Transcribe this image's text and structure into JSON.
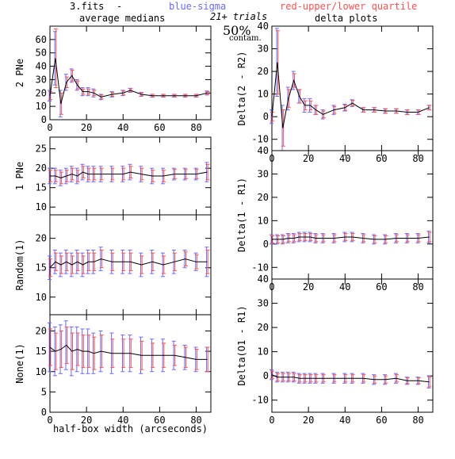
{
  "header": {
    "file": "3.fits",
    "dash": "-",
    "blue_key": "blue-sigma",
    "red_key": "red-upper/lower quartile",
    "trials": "21+ trials",
    "contam_pct": "50%",
    "contam_label": "contam.",
    "left_title": "average medians",
    "right_title": "delta plots"
  },
  "colors": {
    "line": "#000000",
    "sigma": "#6a6aff",
    "quartile": "#ff5050",
    "frame": "#000000"
  },
  "chart_data": [
    {
      "id": "left-0",
      "type": "line",
      "ylabel": "2 PNe",
      "xlabel": "",
      "xlim": [
        0,
        88
      ],
      "ylim": [
        0,
        70
      ],
      "xticks": [
        0,
        20,
        40,
        60,
        80
      ],
      "yticks": [
        0,
        10,
        20,
        30,
        40,
        50,
        60
      ],
      "series": [
        {
          "x": [
            0,
            3,
            6,
            9,
            12,
            15,
            18,
            21,
            24,
            28,
            34,
            40,
            44,
            50,
            56,
            62,
            68,
            74,
            80,
            86
          ],
          "y": [
            18,
            46,
            12,
            28,
            33,
            26,
            21,
            21,
            20,
            17,
            19,
            20,
            22,
            19,
            18,
            18,
            18,
            18,
            18,
            20
          ],
          "sigma": [
            4,
            20,
            10,
            6,
            5,
            4,
            3,
            3,
            3,
            2,
            2,
            2,
            1.5,
            1.5,
            1,
            1,
            1,
            1,
            1,
            1.5
          ],
          "q": [
            3,
            22,
            8,
            4,
            4,
            3,
            2,
            2,
            2,
            1.5,
            1.5,
            1.5,
            1.2,
            1.2,
            1,
            1,
            1,
            1,
            1,
            1
          ]
        }
      ]
    },
    {
      "id": "right-0",
      "type": "line",
      "ylabel": "Delta(2 - R2)",
      "xlabel": "",
      "xlim": [
        0,
        88
      ],
      "ylim": [
        -15,
        40
      ],
      "xticks": [
        0,
        20,
        40,
        60,
        80
      ],
      "yticks": [
        -10,
        0,
        10,
        20,
        30,
        40
      ],
      "series": [
        {
          "x": [
            0,
            3,
            6,
            9,
            12,
            15,
            18,
            21,
            24,
            28,
            34,
            40,
            44,
            50,
            56,
            62,
            68,
            74,
            80,
            86
          ],
          "y": [
            0,
            24,
            -5,
            8,
            16,
            9,
            5,
            5,
            3,
            1,
            3,
            4,
            6,
            3,
            3,
            2.5,
            2.5,
            2,
            2,
            4
          ],
          "sigma": [
            3,
            15,
            10,
            5,
            4,
            3,
            3,
            3,
            2,
            2,
            2,
            1.5,
            1.5,
            1,
            1,
            1,
            1,
            1,
            1,
            1
          ],
          "q": [
            2,
            14,
            8,
            4,
            3,
            3,
            2,
            2,
            2,
            1.5,
            1.5,
            1.2,
            1.2,
            1,
            1,
            1,
            1,
            1,
            1,
            1
          ]
        }
      ]
    },
    {
      "id": "left-1",
      "type": "line",
      "ylabel": "1 PNe",
      "xlabel": "",
      "xlim": [
        0,
        88
      ],
      "ylim": [
        8,
        28
      ],
      "xticks": [
        0,
        20,
        40,
        60,
        80
      ],
      "yticks": [
        10,
        15,
        20,
        25
      ],
      "series": [
        {
          "x": [
            0,
            3,
            6,
            9,
            12,
            15,
            18,
            21,
            24,
            28,
            34,
            40,
            44,
            50,
            56,
            62,
            68,
            74,
            80,
            86
          ],
          "y": [
            18,
            18,
            17.5,
            18,
            18.5,
            18,
            19,
            18.5,
            18.5,
            18.5,
            18.5,
            18.5,
            19,
            18.5,
            18,
            18,
            18.5,
            18.5,
            18.5,
            19
          ],
          "sigma": [
            2,
            2,
            2,
            2,
            2,
            2,
            2,
            2,
            2,
            2,
            2,
            2,
            2,
            2,
            2,
            2,
            1.5,
            1.5,
            1.5,
            2.5
          ],
          "q": [
            1.5,
            1.5,
            1.5,
            1.5,
            1.5,
            1.5,
            1.5,
            1.5,
            1.5,
            1.5,
            1.5,
            1.5,
            1.5,
            1.5,
            1.5,
            1.5,
            1.2,
            1.2,
            1.2,
            2
          ]
        }
      ]
    },
    {
      "id": "right-1",
      "type": "line",
      "ylabel": "Delta(1 - R1)",
      "xlabel": "",
      "xlim": [
        0,
        88
      ],
      "ylim": [
        -15,
        40
      ],
      "xticks": [
        0,
        20,
        40,
        60,
        80
      ],
      "yticks": [
        -10,
        0,
        10,
        20,
        30,
        40
      ],
      "series": [
        {
          "x": [
            0,
            3,
            6,
            9,
            12,
            15,
            18,
            21,
            24,
            28,
            34,
            40,
            44,
            50,
            56,
            62,
            68,
            74,
            80,
            86
          ],
          "y": [
            2,
            2,
            2,
            2.5,
            2.5,
            3,
            3,
            3,
            2.5,
            2.5,
            2.5,
            3,
            3,
            2.5,
            2,
            2,
            2.5,
            2.5,
            2.5,
            3
          ],
          "sigma": [
            2,
            2,
            2,
            2,
            2,
            2,
            2,
            2,
            2,
            2,
            2,
            2,
            2,
            2,
            2,
            2,
            2,
            2,
            2,
            2.5
          ],
          "q": [
            1.5,
            1.5,
            1.5,
            1.5,
            1.5,
            1.5,
            1.5,
            1.5,
            1.5,
            1.5,
            1.5,
            1.5,
            1.5,
            1.5,
            1.5,
            1.5,
            1.5,
            1.5,
            1.5,
            2
          ]
        }
      ]
    },
    {
      "id": "left-2",
      "type": "line",
      "ylabel": "Random(1)",
      "xlabel": "",
      "xlim": [
        0,
        88
      ],
      "ylim": [
        7,
        24
      ],
      "xticks": [
        0,
        20,
        40,
        60,
        80
      ],
      "yticks": [
        10,
        15,
        20
      ],
      "series": [
        {
          "x": [
            0,
            3,
            6,
            9,
            12,
            15,
            18,
            21,
            24,
            28,
            34,
            40,
            44,
            50,
            56,
            62,
            68,
            74,
            80,
            86
          ],
          "y": [
            15,
            16,
            15.5,
            16,
            15.5,
            16,
            15.5,
            16,
            16,
            16.5,
            16,
            16,
            16,
            15.5,
            16,
            15.5,
            16,
            16.5,
            16,
            16
          ],
          "sigma": [
            2,
            2,
            2,
            2,
            2,
            2,
            2,
            2,
            2,
            2,
            2,
            2,
            2,
            2,
            2,
            2,
            2,
            1.5,
            1.5,
            2.5
          ],
          "q": [
            1.5,
            1.5,
            1.5,
            1.5,
            1.5,
            1.5,
            1.5,
            1.5,
            1.5,
            1.5,
            1.5,
            1.5,
            1.5,
            1.5,
            1.5,
            1.5,
            1.5,
            1.2,
            1.2,
            2
          ]
        }
      ]
    },
    {
      "id": "right-2",
      "type": "line",
      "ylabel": "Delta(O1 - R1)",
      "xlabel": "",
      "xlim": [
        0,
        88
      ],
      "ylim": [
        -15,
        40
      ],
      "xticks": [
        0,
        20,
        40,
        60,
        80
      ],
      "yticks": [
        -10,
        0,
        10,
        20,
        30,
        40
      ],
      "series": [
        {
          "x": [
            0,
            3,
            6,
            9,
            12,
            15,
            18,
            21,
            24,
            28,
            34,
            40,
            44,
            50,
            56,
            62,
            68,
            74,
            80,
            86
          ],
          "y": [
            0.5,
            -0.5,
            -0.5,
            -0.5,
            -0.5,
            -1,
            -1,
            -1,
            -1,
            -1,
            -1,
            -1,
            -1,
            -1,
            -1.5,
            -1.5,
            -1,
            -2,
            -2,
            -2.5
          ],
          "sigma": [
            2,
            2,
            2,
            2,
            2,
            2,
            2,
            2,
            2,
            2,
            2,
            2,
            2,
            2,
            2,
            2,
            2,
            1.5,
            1.5,
            2.5
          ],
          "q": [
            1.5,
            1.5,
            1.5,
            1.5,
            1.5,
            1.5,
            1.5,
            1.5,
            1.5,
            1.5,
            1.5,
            1.5,
            1.5,
            1.5,
            1.5,
            1.5,
            1.5,
            1.2,
            1.2,
            2
          ]
        }
      ]
    },
    {
      "id": "left-3",
      "type": "line",
      "ylabel": "None(1)",
      "xlabel": "half-box width (arcseconds)",
      "xlim": [
        0,
        88
      ],
      "ylim": [
        0,
        24
      ],
      "xticks": [
        0,
        20,
        40,
        60,
        80
      ],
      "yticks": [
        0,
        5,
        10,
        15,
        20
      ],
      "series": [
        {
          "x": [
            0,
            3,
            6,
            9,
            12,
            15,
            18,
            21,
            24,
            28,
            34,
            40,
            44,
            50,
            56,
            62,
            68,
            74,
            80,
            86
          ],
          "y": [
            16,
            15,
            15.5,
            16.5,
            15,
            15.5,
            15,
            15,
            14.5,
            15,
            14.5,
            14.5,
            14.5,
            14,
            14,
            14,
            14,
            13.5,
            13,
            13
          ],
          "sigma": [
            6,
            6,
            6,
            6,
            6,
            5.5,
            5.5,
            5.5,
            5,
            5,
            5,
            4.5,
            4.5,
            4.5,
            4,
            4,
            3.5,
            3,
            3,
            3
          ],
          "q": [
            4.5,
            4.5,
            4.5,
            4.5,
            4.5,
            4,
            4,
            4,
            4,
            4,
            3.5,
            3.5,
            3.5,
            3.5,
            3,
            3,
            2.5,
            2.5,
            2.5,
            3
          ]
        }
      ]
    },
    {
      "id": "right-3",
      "type": "line",
      "ylabel": "",
      "xlabel": "half-box width (arcseconds)",
      "xlim": [
        0,
        88
      ],
      "ylim": [
        -15,
        40
      ],
      "xticks": [
        0,
        20,
        40,
        60,
        80
      ],
      "yticks": [],
      "series": []
    }
  ]
}
